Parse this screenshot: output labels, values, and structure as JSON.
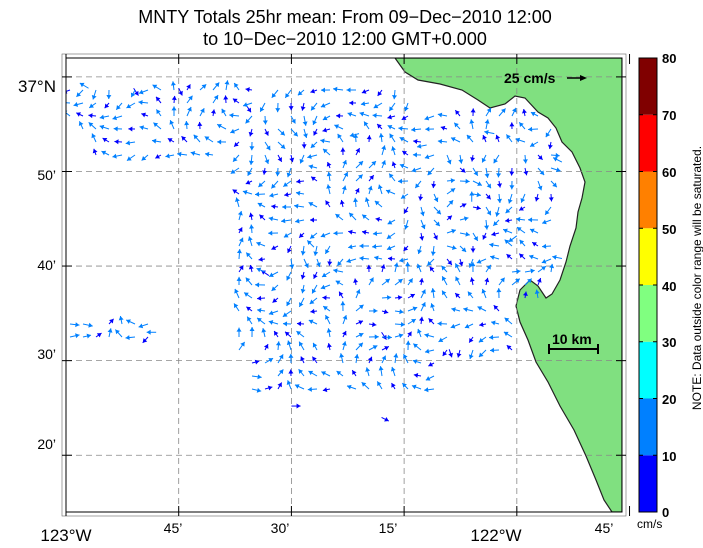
{
  "title": {
    "line1": "MNTY Totals 25hr mean: From 09−Dec−2010 12:00",
    "line2": "to 10−Dec−2010 12:00 GMT+0.000"
  },
  "axes": {
    "lat_labels": [
      "37°N",
      "50’",
      "40’",
      "30’",
      "20’"
    ],
    "lon_labels": [
      "123°W",
      "45’",
      "30’",
      "15’",
      "122°W",
      "45’"
    ],
    "lat_values": [
      37.0,
      36.8333,
      36.6667,
      36.5,
      36.3333
    ],
    "lon_values": [
      -123.0,
      -122.75,
      -122.5,
      -122.25,
      -122.0,
      -121.75
    ],
    "lat_range": [
      36.2333,
      37.0333
    ],
    "lon_range": [
      -123.0,
      -121.7667
    ]
  },
  "colorbar": {
    "ticks": [
      "0",
      "10",
      "20",
      "30",
      "40",
      "50",
      "60",
      "70",
      "80"
    ],
    "units": "cm/s",
    "colors": [
      "#0000ff",
      "#0080ff",
      "#00ffff",
      "#80ff80",
      "#ffff00",
      "#ff8000",
      "#ff0000",
      "#800000"
    ],
    "note": "NOTE: Data outside color range will be saturated."
  },
  "reference_vector": {
    "label": "25 cm/s",
    "value_cm_s": 25
  },
  "scale_bar": {
    "label": "10 km"
  },
  "land_color": "#80e080",
  "chart_data": {
    "type": "quiver",
    "title": "MNTY Totals 25hr mean",
    "color_range_cm_s": [
      0,
      80
    ],
    "sample_vectors": [
      {
        "lon": -122.95,
        "lat": 36.98,
        "u": -5,
        "v": 3,
        "speed": 12
      },
      {
        "lon": -122.85,
        "lat": 36.98,
        "u": 2,
        "v": -3,
        "speed": 8
      },
      {
        "lon": -122.75,
        "lat": 36.98,
        "u": 1,
        "v": -2,
        "speed": 6
      },
      {
        "lon": -122.6,
        "lat": 36.95,
        "u": 2,
        "v": -3,
        "speed": 7
      },
      {
        "lon": -122.35,
        "lat": 36.9,
        "u": -4,
        "v": -1,
        "speed": 10
      },
      {
        "lon": -122.2,
        "lat": 36.88,
        "u": -5,
        "v": -1,
        "speed": 11
      },
      {
        "lon": -122.05,
        "lat": 36.9,
        "u": -5,
        "v": 1,
        "speed": 12
      },
      {
        "lon": -121.9,
        "lat": 36.85,
        "u": -4,
        "v": 2,
        "speed": 11
      },
      {
        "lon": -122.1,
        "lat": 36.78,
        "u": 0,
        "v": 5,
        "speed": 12
      },
      {
        "lon": -122.0,
        "lat": 36.72,
        "u": -4,
        "v": -3,
        "speed": 12
      },
      {
        "lon": -121.9,
        "lat": 36.68,
        "u": -5,
        "v": 1,
        "speed": 11
      },
      {
        "lon": -122.45,
        "lat": 36.7,
        "u": -3,
        "v": 3,
        "speed": 10
      },
      {
        "lon": -122.55,
        "lat": 36.65,
        "u": -3,
        "v": 2,
        "speed": 9
      },
      {
        "lon": -122.3,
        "lat": 36.55,
        "u": 2,
        "v": -3,
        "speed": 8
      },
      {
        "lon": -122.15,
        "lat": 36.52,
        "u": 1,
        "v": -3,
        "speed": 7
      },
      {
        "lon": -122.8,
        "lat": 36.55,
        "u": -4,
        "v": 0,
        "speed": 10
      },
      {
        "lon": -122.5,
        "lat": 36.42,
        "u": 4,
        "v": 0,
        "speed": 9
      },
      {
        "lon": -122.3,
        "lat": 36.4,
        "u": 2,
        "v": -1,
        "speed": 6
      }
    ]
  }
}
